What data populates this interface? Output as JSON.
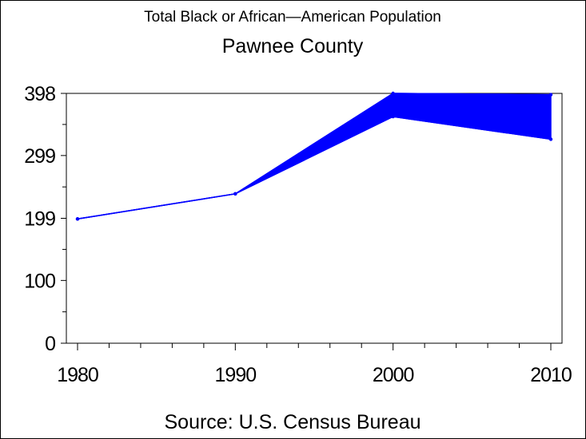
{
  "chart_data": {
    "type": "area",
    "title": "Total Black or African—American Population",
    "subtitle": "Pawnee County",
    "source": "Source: U.S. Census Bureau",
    "xlabel": "",
    "ylabel": "",
    "x": [
      1980,
      1990,
      2000,
      2010
    ],
    "x_ticks": [
      "1980",
      "1990",
      "2000",
      "2010"
    ],
    "y_ticks": [
      "0",
      "100",
      "199",
      "299",
      "398"
    ],
    "y_tick_values": [
      0,
      100,
      199,
      299,
      398
    ],
    "ylim": [
      0,
      398
    ],
    "xlim": [
      1980,
      2010
    ],
    "series": [
      {
        "name": "upper",
        "values": [
          198,
          238,
          398,
          396
        ]
      },
      {
        "name": "lower",
        "values": [
          198,
          238,
          361,
          325
        ]
      }
    ],
    "color": "#0000ff",
    "grid": false
  }
}
